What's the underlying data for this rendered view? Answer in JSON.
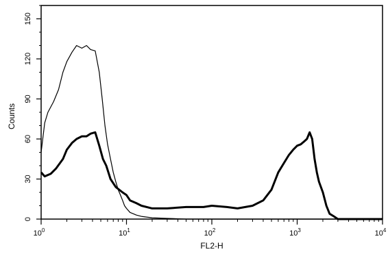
{
  "chart_data": {
    "type": "line",
    "title": "",
    "xlabel": "FL2-H",
    "ylabel": "Counts",
    "x_scale": "log",
    "xlim": [
      1,
      10000
    ],
    "ylim": [
      0,
      160
    ],
    "grid": false,
    "x_ticks": [
      {
        "value": 1,
        "base": "10",
        "exp": "0"
      },
      {
        "value": 10,
        "base": "10",
        "exp": "1"
      },
      {
        "value": 100,
        "base": "10",
        "exp": "2"
      },
      {
        "value": 1000,
        "base": "10",
        "exp": "3"
      },
      {
        "value": 10000,
        "base": "10",
        "exp": "4"
      }
    ],
    "y_ticks": [
      0,
      30,
      60,
      90,
      120,
      150
    ],
    "series": [
      {
        "style": "thin",
        "color": "#000000",
        "x": [
          1,
          1.1,
          1.2,
          1.4,
          1.6,
          1.8,
          2.0,
          2.3,
          2.6,
          3.0,
          3.4,
          3.8,
          4.3,
          4.8,
          5.2,
          5.6,
          6.0,
          6.5,
          7.0,
          7.5,
          8.0,
          8.5,
          9.0,
          9.5,
          10,
          11,
          12,
          13,
          15,
          20,
          30,
          50,
          100,
          300,
          1000,
          10000
        ],
        "y": [
          50,
          72,
          80,
          88,
          97,
          110,
          118,
          125,
          130,
          128,
          130,
          127,
          126,
          110,
          90,
          70,
          56,
          45,
          35,
          28,
          22,
          18,
          14,
          10,
          8,
          5,
          4,
          3,
          2,
          1,
          0.5,
          0,
          0,
          0,
          0,
          0
        ]
      },
      {
        "style": "thick",
        "color": "#000000",
        "x": [
          1,
          1.1,
          1.3,
          1.5,
          1.8,
          2.0,
          2.3,
          2.6,
          3.0,
          3.4,
          3.8,
          4.3,
          4.8,
          5.3,
          5.8,
          6.5,
          7.5,
          9,
          10,
          11,
          13,
          15,
          20,
          30,
          50,
          80,
          100,
          150,
          200,
          300,
          400,
          500,
          600,
          700,
          800,
          900,
          1000,
          1100,
          1200,
          1300,
          1400,
          1500,
          1600,
          1700,
          1800,
          2000,
          2200,
          2400,
          2700,
          3000,
          4000,
          10000
        ],
        "y": [
          35,
          32,
          34,
          38,
          45,
          52,
          57,
          60,
          62,
          62,
          64,
          65,
          55,
          45,
          40,
          30,
          24,
          20,
          18,
          14,
          12,
          10,
          8,
          8,
          9,
          9,
          10,
          9,
          8,
          10,
          14,
          22,
          35,
          42,
          48,
          52,
          55,
          56,
          58,
          60,
          65,
          60,
          45,
          35,
          28,
          20,
          10,
          4,
          2,
          0,
          0,
          0
        ]
      }
    ]
  }
}
